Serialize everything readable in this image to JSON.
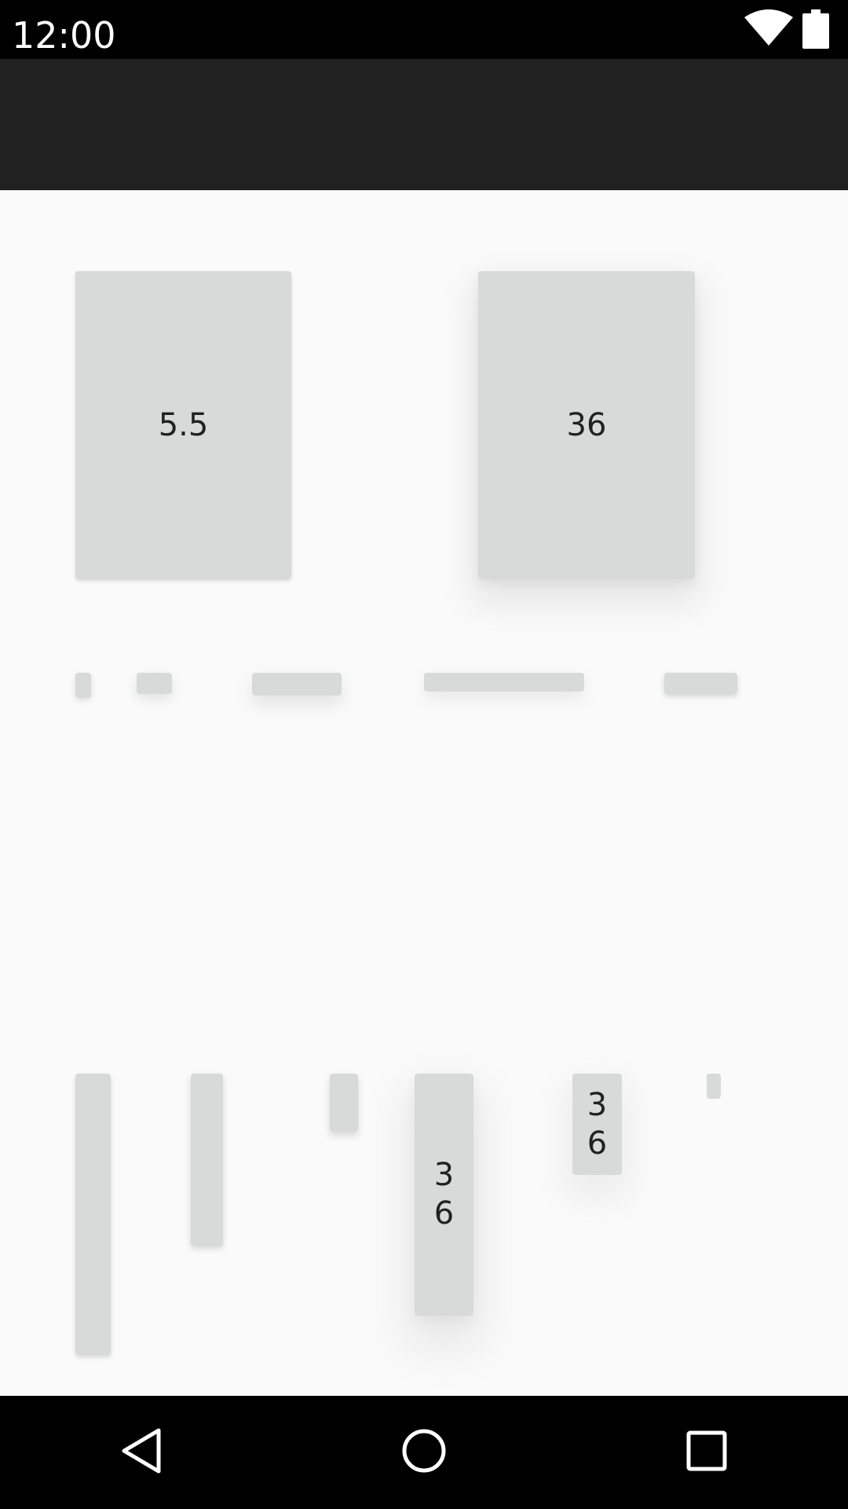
{
  "status_bar": {
    "time": "12:00",
    "icons": [
      "wifi-icon",
      "battery-icon"
    ]
  },
  "toolbar": {
    "title": ""
  },
  "cards": {
    "large_left": {
      "label": "5.5"
    },
    "large_right": {
      "label": "36"
    },
    "tall_center": {
      "label": "36"
    },
    "small_right": {
      "label": "36"
    }
  },
  "nav_bar": {
    "icons": [
      "back-icon",
      "home-icon",
      "recents-icon"
    ]
  },
  "colors": {
    "background": "#fafafa",
    "toolbar": "#212121",
    "card": "#d8d9d9",
    "text": "#212121",
    "system_bar": "#000000",
    "system_icon": "#ffffff"
  }
}
